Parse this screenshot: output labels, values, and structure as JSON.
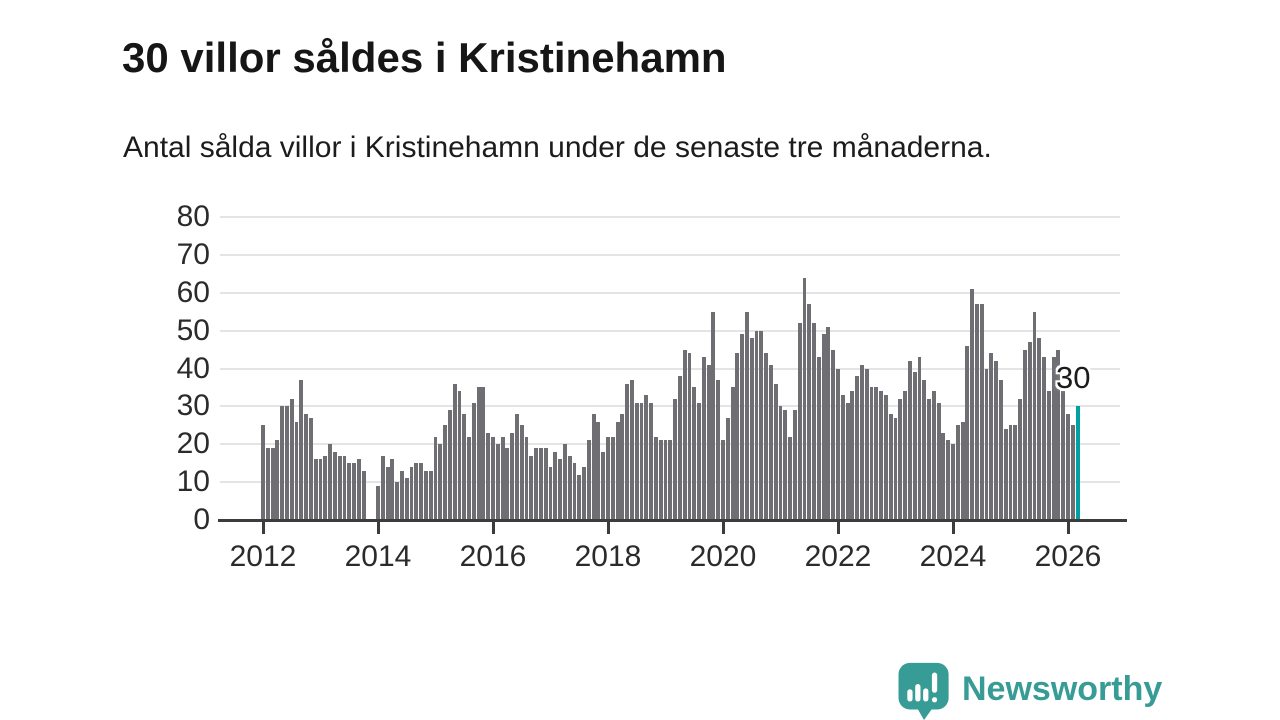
{
  "header": {
    "title": "30 villor såldes i Kristinehamn",
    "subtitle": "Antal sålda villor i Kristinehamn under de senaste tre månaderna."
  },
  "chart_data": {
    "type": "bar",
    "title": "30 villor såldes i Kristinehamn",
    "subtitle": "Antal sålda villor i Kristinehamn under de senaste tre månaderna.",
    "x_unit": "month",
    "series_start": {
      "year": 2012,
      "month": 1
    },
    "values": [
      25,
      19,
      19,
      21,
      30,
      30,
      32,
      26,
      37,
      28,
      27,
      16,
      16,
      17,
      20,
      18,
      17,
      17,
      15,
      15,
      16,
      13,
      0,
      0,
      9,
      17,
      14,
      16,
      10,
      13,
      11,
      14,
      15,
      15,
      13,
      13,
      22,
      20,
      25,
      29,
      36,
      34,
      28,
      22,
      31,
      35,
      35,
      23,
      22,
      20,
      22,
      19,
      23,
      28,
      25,
      22,
      17,
      19,
      19,
      19,
      14,
      18,
      16,
      20,
      17,
      15,
      12,
      14,
      21,
      28,
      26,
      18,
      22,
      22,
      26,
      28,
      36,
      37,
      31,
      31,
      33,
      31,
      22,
      21,
      21,
      21,
      32,
      38,
      45,
      44,
      35,
      31,
      43,
      41,
      55,
      37,
      21,
      27,
      35,
      44,
      49,
      55,
      48,
      50,
      50,
      44,
      41,
      36,
      30,
      29,
      22,
      29,
      52,
      64,
      57,
      52,
      43,
      49,
      51,
      45,
      40,
      33,
      31,
      34,
      38,
      41,
      40,
      35,
      35,
      34,
      33,
      28,
      27,
      32,
      34,
      42,
      39,
      43,
      37,
      32,
      34,
      31,
      23,
      21,
      20,
      25,
      26,
      46,
      61,
      57,
      57,
      40,
      44,
      42,
      37,
      24,
      25,
      25,
      32,
      45,
      47,
      55,
      48,
      43,
      34,
      43,
      45,
      34,
      28,
      25,
      30
    ],
    "ylim": [
      0,
      80
    ],
    "y_ticks": [
      0,
      10,
      20,
      30,
      40,
      50,
      60,
      70,
      80
    ],
    "x_tick_years": [
      2012,
      2014,
      2016,
      2018,
      2020,
      2022,
      2024,
      2026
    ],
    "grid": true,
    "legend": "none",
    "highlight_last": {
      "value": 30,
      "label": "30"
    },
    "colors": {
      "bar": "#6e6e73",
      "highlight": "#00a1a0",
      "grid": "#e4e4e4",
      "axis": "#3c3c3c"
    }
  },
  "footer": {
    "brand": "Newsworthy",
    "brand_color": "#379c95",
    "logo_icon": "bar-chart-speech-bubble"
  }
}
